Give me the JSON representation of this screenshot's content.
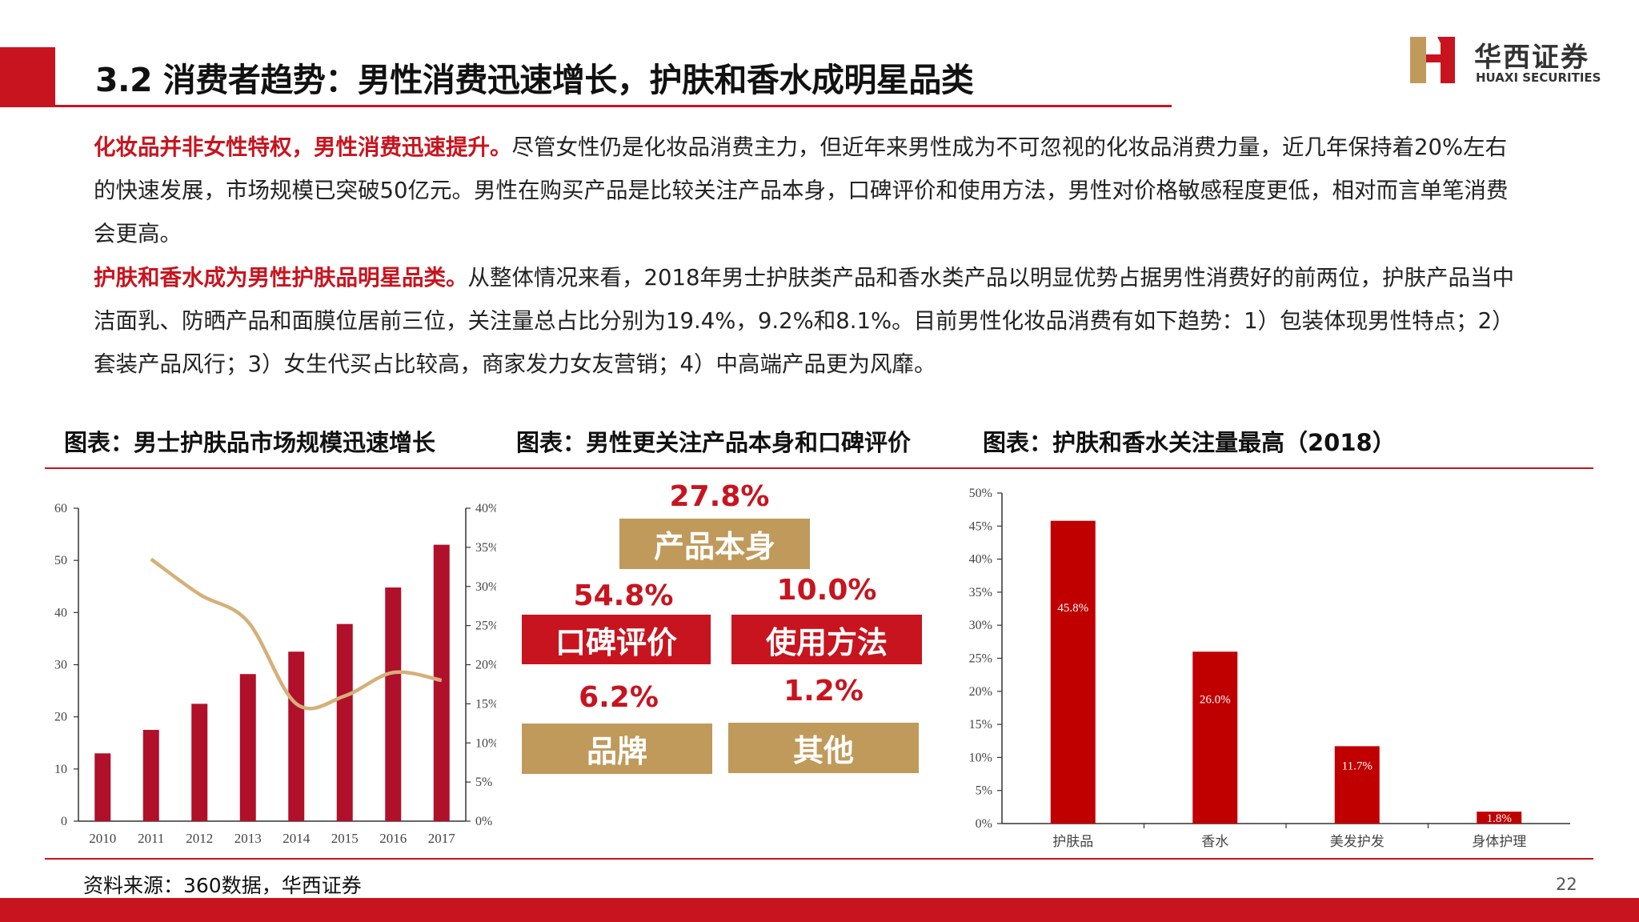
{
  "header": {
    "title": "3.2 消费者趋势：男性消费迅速增长，护肤和香水成明星品类",
    "logo_cn": "华西证券",
    "logo_en": "HUAXI SECURITIES"
  },
  "body": {
    "para1_highlight": "化妆品并非女性特权，男性消费迅速提升。",
    "para1_text": "尽管女性仍是化妆品消费主力，但近年来男性成为不可忽视的化妆品消费力量，近几年保持着20%左右的快速发展，市场规模已突破50亿元。男性在购买产品是比较关注产品本身，口碑评价和使用方法，男性对价格敏感程度更低，相对而言单笔消费会更高。",
    "para2_highlight": "护肤和香水成为男性护肤品明星品类。",
    "para2_text": "从整体情况来看，2018年男士护肤类产品和香水类产品以明显优势占据男性消费好的前两位，护肤产品当中洁面乳、防晒产品和面膜位居前三位，关注量总占比分别为19.4%，9.2%和8.1%。目前男性化妆品消费有如下趋势：1）包装体现男性特点；2）套装产品风行；3）女生代买占比较高，商家发力女友营销；4）中高端产品更为风靡。"
  },
  "chart_titles": {
    "left": "图表：男士护肤品市场规模迅速增长",
    "middle": "图表：男性更关注产品本身和口碑评价",
    "right": "图表：护肤和香水关注量最高（2018）"
  },
  "middle": {
    "items": [
      {
        "label": "产品本身",
        "value": "27.8%"
      },
      {
        "label": "口碑评价",
        "value": "54.8%"
      },
      {
        "label": "使用方法",
        "value": "10.0%"
      },
      {
        "label": "品牌",
        "value": "6.2%"
      },
      {
        "label": "其他",
        "value": "1.2%"
      }
    ]
  },
  "footer": {
    "source": "资料来源：360数据，华西证券",
    "page": "22"
  },
  "colors": {
    "accent": "#c8141e",
    "gold": "#c09a5b",
    "bar_dark": "#b0102a",
    "line": "#d4b07a"
  },
  "chart_data": [
    {
      "type": "bar",
      "categories": [
        "2010",
        "2011",
        "2012",
        "2013",
        "2014",
        "2015",
        "2016",
        "2017"
      ],
      "series": [
        {
          "values": [
            13,
            17.5,
            22.5,
            28.2,
            32.5,
            37.8,
            44.8,
            53
          ]
        },
        {
          "values": [
            null,
            33.5,
            29,
            25.5,
            15,
            16,
            19,
            18
          ]
        }
      ],
      "ylim": [
        0,
        60
      ],
      "y2lim": [
        0,
        40
      ],
      "yticks": [
        "0",
        "10",
        "20",
        "30",
        "40",
        "50",
        "60"
      ],
      "y2ticks": [
        "0%",
        "5%",
        "10%",
        "15%",
        "20%",
        "25%",
        "30%",
        "35%",
        "40%"
      ]
    },
    {
      "type": "bar",
      "categories": [
        "护肤品",
        "香水",
        "美发护发",
        "身体护理"
      ],
      "values": [
        45.8,
        26.0,
        11.7,
        1.8
      ],
      "labels": [
        "45.8%",
        "26.0%",
        "11.7%",
        "1.8%"
      ],
      "ylim": [
        0,
        50
      ],
      "yticks": [
        "0%",
        "5%",
        "10%",
        "15%",
        "20%",
        "25%",
        "30%",
        "35%",
        "40%",
        "45%",
        "50%"
      ]
    }
  ]
}
